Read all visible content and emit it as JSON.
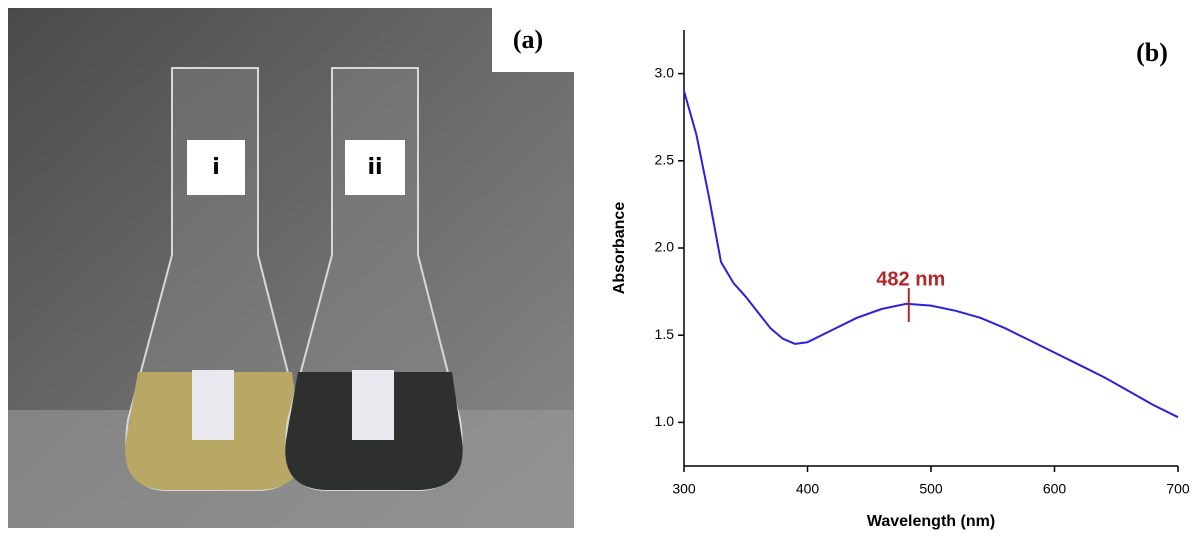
{
  "panel_a": {
    "label": "(a)",
    "flask_labels": [
      "i",
      "ii"
    ]
  },
  "chart_data": {
    "type": "line",
    "panel_label": "(b)",
    "x_label": "Wavelength (nm)",
    "y_label": "Absorbance",
    "x": [
      300,
      310,
      320,
      330,
      340,
      350,
      360,
      370,
      380,
      390,
      400,
      420,
      440,
      460,
      480,
      500,
      520,
      540,
      560,
      580,
      600,
      620,
      640,
      660,
      680,
      700
    ],
    "values": [
      2.9,
      2.65,
      2.3,
      1.92,
      1.8,
      1.72,
      1.63,
      1.54,
      1.48,
      1.45,
      1.46,
      1.53,
      1.6,
      1.65,
      1.68,
      1.67,
      1.64,
      1.6,
      1.54,
      1.47,
      1.4,
      1.33,
      1.26,
      1.18,
      1.1,
      1.03
    ],
    "color": "#2b1fe0",
    "xlim": [
      300,
      700
    ],
    "xticks": [
      300,
      400,
      500,
      600,
      700
    ],
    "ylim": [
      0.75,
      3.25
    ],
    "yticks": [
      {
        "value": 1,
        "label": "1.0"
      },
      1.5,
      {
        "value": 2,
        "label": "2.0"
      },
      2.5,
      {
        "value": 3,
        "label": "3.0"
      }
    ],
    "annotation": {
      "text": "482 nm",
      "x": 482,
      "color": "#b3262a"
    }
  }
}
